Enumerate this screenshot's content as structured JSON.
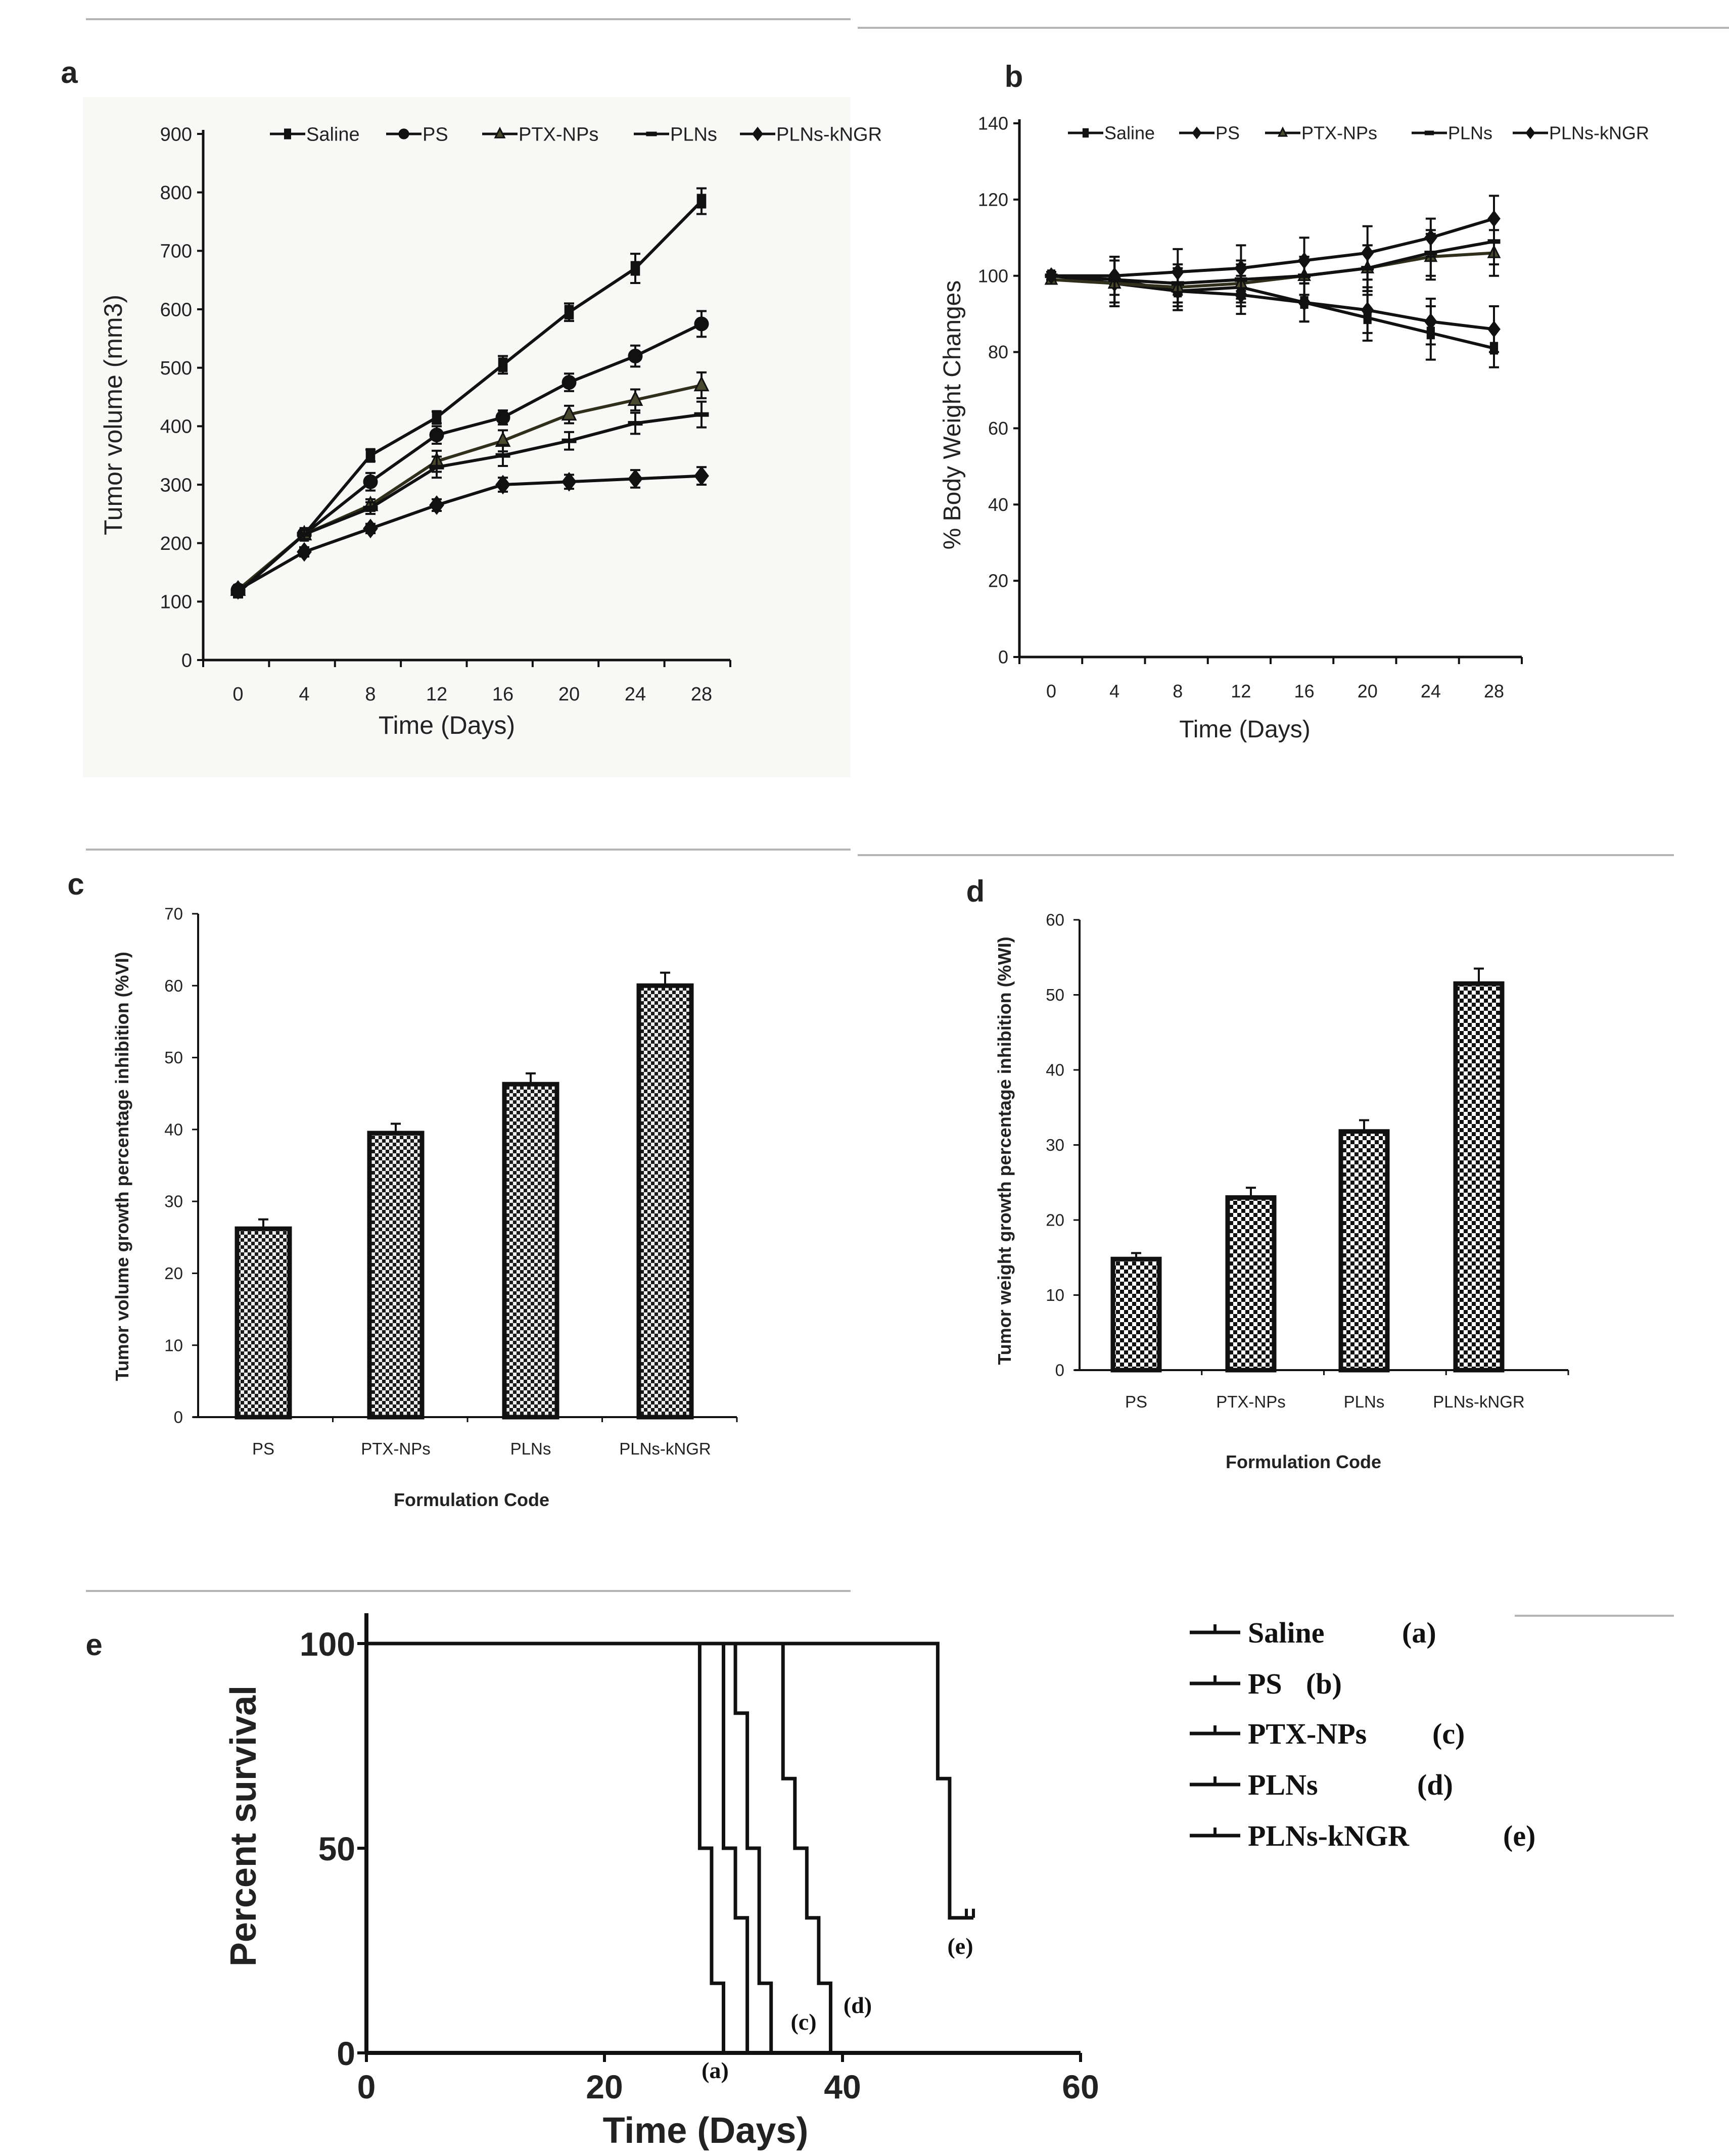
{
  "chart_data": [
    {
      "panel_label": "a",
      "type": "line",
      "xlabel": "Time (Days)",
      "ylabel": "Tumor volume (mm3)",
      "x": [
        0,
        4,
        8,
        12,
        16,
        20,
        24,
        28
      ],
      "xticks": [
        "0",
        "4",
        "8",
        "12",
        "16",
        "20",
        "24",
        "28"
      ],
      "yticks": [
        "0",
        "100",
        "200",
        "300",
        "400",
        "500",
        "600",
        "700",
        "800",
        "900"
      ],
      "ylim": [
        0,
        900
      ],
      "legend_position": "top",
      "series": [
        {
          "name": "Saline",
          "marker": "square",
          "values": [
            118,
            215,
            350,
            415,
            505,
            595,
            670,
            785
          ],
          "errors": [
            8,
            8,
            10,
            10,
            15,
            15,
            25,
            22
          ]
        },
        {
          "name": "PS",
          "marker": "circle",
          "values": [
            120,
            215,
            305,
            385,
            415,
            475,
            520,
            575
          ],
          "errors": [
            8,
            8,
            15,
            15,
            12,
            15,
            18,
            22
          ]
        },
        {
          "name": "PTX-NPs",
          "marker": "triangle",
          "values": [
            120,
            215,
            265,
            340,
            375,
            420,
            445,
            470
          ],
          "errors": [
            8,
            8,
            10,
            18,
            18,
            15,
            18,
            22
          ]
        },
        {
          "name": "PLNs",
          "marker": "dash",
          "values": [
            115,
            215,
            260,
            330,
            350,
            375,
            405,
            420
          ],
          "errors": [
            8,
            8,
            10,
            18,
            18,
            15,
            18,
            22
          ]
        },
        {
          "name": "PLNs-kNGR",
          "marker": "diamond",
          "values": [
            120,
            185,
            225,
            265,
            300,
            305,
            310,
            315
          ],
          "errors": [
            8,
            8,
            8,
            10,
            12,
            12,
            15,
            15
          ]
        }
      ]
    },
    {
      "panel_label": "b",
      "type": "line",
      "xlabel": "Time (Days)",
      "ylabel": "% Body Weight Changes",
      "x": [
        0,
        4,
        8,
        12,
        16,
        20,
        24,
        28
      ],
      "xticks": [
        "0",
        "4",
        "8",
        "12",
        "16",
        "20",
        "24",
        "28"
      ],
      "yticks": [
        "0",
        "20",
        "40",
        "60",
        "80",
        "100",
        "120",
        "140"
      ],
      "ylim": [
        0,
        140
      ],
      "legend_position": "top",
      "series": [
        {
          "name": "Saline",
          "marker": "square",
          "values": [
            100,
            99,
            96,
            97,
            93,
            89,
            85,
            81
          ],
          "errors": [
            1,
            6,
            5,
            5,
            5,
            6,
            7,
            5
          ]
        },
        {
          "name": "PS",
          "marker": "diamond",
          "values": [
            100,
            98,
            96,
            95,
            93,
            91,
            88,
            86
          ],
          "errors": [
            1,
            6,
            5,
            5,
            5,
            6,
            6,
            6
          ]
        },
        {
          "name": "PTX-NPs",
          "marker": "triangle",
          "values": [
            99,
            98,
            97,
            98,
            100,
            102,
            105,
            106
          ],
          "errors": [
            1,
            6,
            5,
            5,
            5,
            6,
            6,
            6
          ]
        },
        {
          "name": "PLNs",
          "marker": "dash",
          "values": [
            100,
            99,
            98,
            99,
            100,
            102,
            106,
            109
          ],
          "errors": [
            1,
            6,
            5,
            5,
            5,
            6,
            6,
            6
          ]
        },
        {
          "name": "PLNs-kNGR",
          "marker": "diamond",
          "values": [
            100,
            100,
            101,
            102,
            104,
            106,
            110,
            115
          ],
          "errors": [
            1,
            5,
            6,
            6,
            6,
            7,
            5,
            6
          ]
        }
      ]
    },
    {
      "panel_label": "c",
      "type": "bar",
      "xlabel": "Formulation Code",
      "ylabel": "Tumor volume growth percentage inhibition (%VI)",
      "categories": [
        "PS",
        "PTX-NPs",
        "PLNs",
        "PLNs-kNGR"
      ],
      "values": [
        26.2,
        39.5,
        46.3,
        60
      ],
      "errors": [
        1.3,
        1.3,
        1.5,
        1.8
      ],
      "yticks": [
        "0",
        "10",
        "20",
        "30",
        "40",
        "50",
        "60",
        "70"
      ],
      "ylim": [
        0,
        70
      ]
    },
    {
      "panel_label": "d",
      "type": "bar",
      "xlabel": "Formulation Code",
      "ylabel": "Tumor weight growth percentage inhibition (%WI)",
      "categories": [
        "PS",
        "PTX-NPs",
        "PLNs",
        "PLNs-kNGR"
      ],
      "values": [
        14.8,
        23,
        31.8,
        51.5
      ],
      "errors": [
        0.8,
        1.3,
        1.5,
        2
      ],
      "yticks": [
        "0",
        "10",
        "20",
        "30",
        "40",
        "50",
        "60"
      ],
      "ylim": [
        0,
        60
      ]
    },
    {
      "panel_label": "e",
      "type": "line",
      "subtype": "survival-step",
      "xlabel": "Time (Days)",
      "ylabel": "Percent survival",
      "xticks": [
        "0",
        "20",
        "40",
        "60"
      ],
      "xtick_values": [
        0,
        20,
        40,
        60
      ],
      "yticks": [
        "0",
        "50",
        "100"
      ],
      "ytick_values": [
        0,
        50,
        100
      ],
      "xlim": [
        0,
        60
      ],
      "ylim": [
        0,
        100
      ],
      "legend_position": "right",
      "series": [
        {
          "name": "Saline (a)",
          "label_name": "Saline",
          "tag": "(a)",
          "points": [
            [
              0,
              100
            ],
            [
              28,
              50
            ],
            [
              29,
              17
            ],
            [
              30,
              0
            ]
          ]
        },
        {
          "name": "PS (b)",
          "label_name": "PS",
          "tag": "(b)",
          "points": [
            [
              0,
              100
            ],
            [
              30,
              50
            ],
            [
              31,
              33
            ],
            [
              32,
              0
            ]
          ]
        },
        {
          "name": "PTX-NPs (c)",
          "label_name": "PTX-NPs",
          "tag": "(c)",
          "points": [
            [
              0,
              100
            ],
            [
              31,
              83
            ],
            [
              32,
              50
            ],
            [
              33,
              17
            ],
            [
              34,
              0
            ]
          ]
        },
        {
          "name": "PLNs (d)",
          "label_name": "PLNs",
          "tag": "(d)",
          "points": [
            [
              0,
              100
            ],
            [
              35,
              67
            ],
            [
              36,
              50
            ],
            [
              37,
              33
            ],
            [
              38,
              17
            ],
            [
              39,
              0
            ]
          ]
        },
        {
          "name": "PLNs-kNGR (e)",
          "label_name": "PLNs-kNGR",
          "tag": "(e)",
          "points": [
            [
              0,
              100
            ],
            [
              48,
              67
            ],
            [
              49,
              33
            ]
          ],
          "censored_end": 51
        }
      ],
      "annotations": [
        "(a)",
        "(c)",
        "(d)",
        "(e)"
      ]
    }
  ]
}
